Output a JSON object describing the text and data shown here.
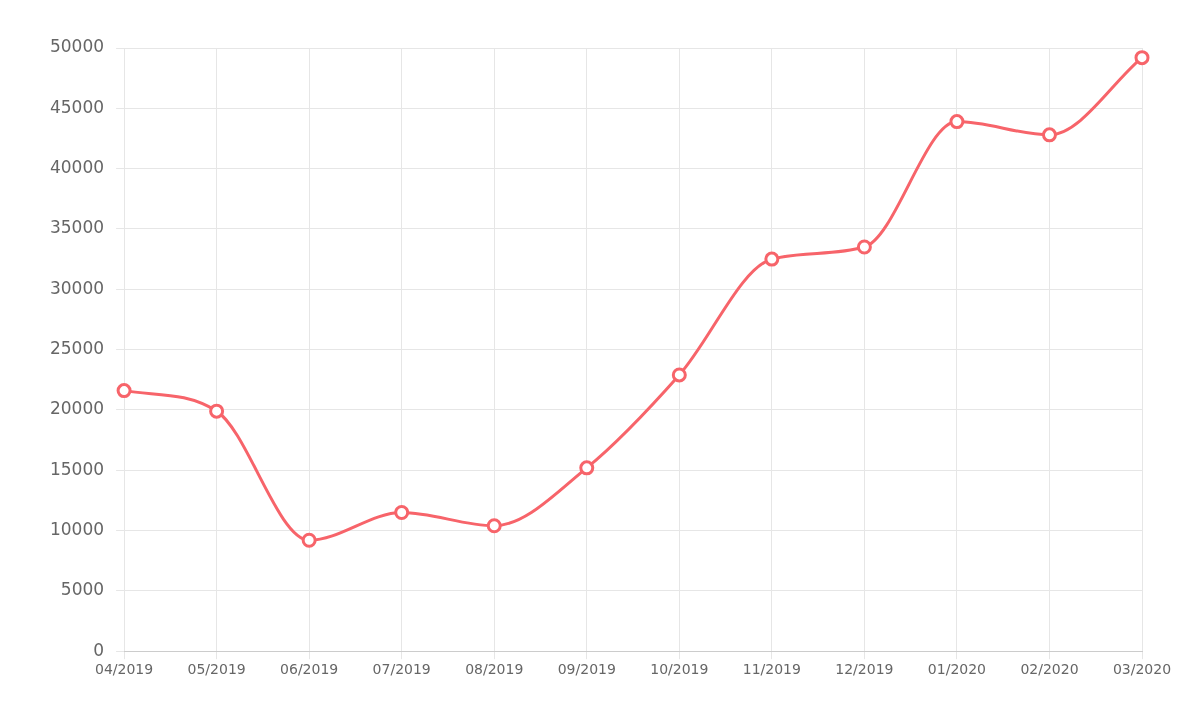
{
  "chart_data": {
    "type": "line",
    "categories": [
      "04/2019",
      "05/2019",
      "06/2019",
      "07/2019",
      "08/2019",
      "09/2019",
      "10/2019",
      "11/2019",
      "12/2019",
      "01/2020",
      "02/2020",
      "03/2020"
    ],
    "series": [
      {
        "color": "#f7646a",
        "values": [
          21600,
          19900,
          9200,
          11500,
          10400,
          15200,
          22900,
          32500,
          33500,
          43900,
          42800,
          49200
        ]
      }
    ],
    "ylim": [
      0,
      50000
    ],
    "yticks": [
      0,
      5000,
      10000,
      15000,
      20000,
      25000,
      30000,
      35000,
      40000,
      45000,
      50000
    ],
    "grid": true,
    "legend": false,
    "marker": "circle",
    "line_style": "solid"
  }
}
